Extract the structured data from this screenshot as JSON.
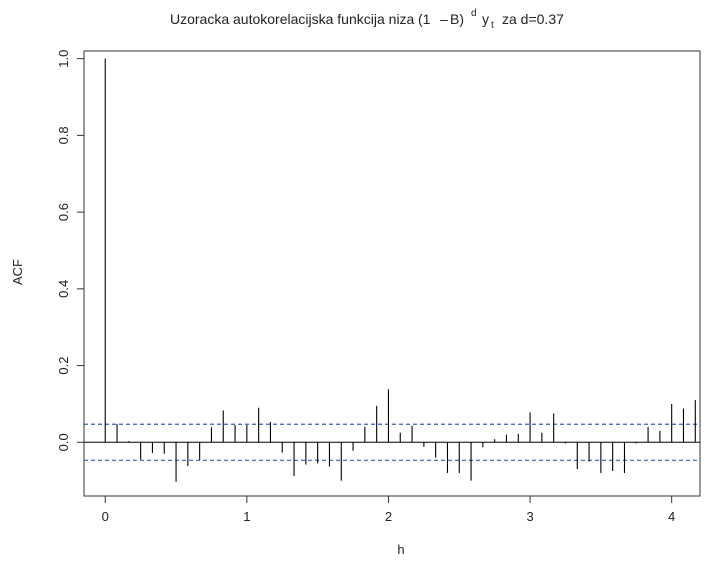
{
  "chart_data": {
    "type": "bar",
    "title": {
      "main": "Uzoracka autokorelacijska funkcija niza",
      "formula_open": "(1",
      "formula_minus": "–",
      "formula_close": "B)",
      "formula_exp": "d",
      "formula_y": "y",
      "formula_sub": "t",
      "formula_tail": "za d=0.37"
    },
    "xlabel": "h",
    "ylabel": "ACF",
    "xlim": [
      -0.15,
      4.2
    ],
    "ylim": [
      -0.14,
      1.02
    ],
    "x_ticks": [
      0,
      1,
      2,
      3,
      4
    ],
    "x_tick_labels": [
      "0",
      "1",
      "2",
      "3",
      "4"
    ],
    "y_ticks": [
      0.0,
      0.2,
      0.4,
      0.6,
      0.8,
      1.0
    ],
    "y_tick_labels": [
      "0.0",
      "0.2",
      "0.4",
      "0.6",
      "0.8",
      "1.0"
    ],
    "confidence_bound": 0.047,
    "colors": {
      "spike": "#000000",
      "bound": "#3b5fb5",
      "axis": "#333333"
    },
    "x": [
      0.0,
      0.0833,
      0.1667,
      0.25,
      0.3333,
      0.4167,
      0.5,
      0.5833,
      0.6667,
      0.75,
      0.8333,
      0.9167,
      1.0,
      1.0833,
      1.1667,
      1.25,
      1.3333,
      1.4167,
      1.5,
      1.5833,
      1.6667,
      1.75,
      1.8333,
      1.9167,
      2.0,
      2.0833,
      2.1667,
      2.25,
      2.3333,
      2.4167,
      2.5,
      2.5833,
      2.6667,
      2.75,
      2.8333,
      2.9167,
      3.0,
      3.0833,
      3.1667,
      3.25,
      3.3333,
      3.4167,
      3.5,
      3.5833,
      3.6667,
      3.75,
      3.8333,
      3.9167,
      4.0,
      4.0833,
      4.1667
    ],
    "values": [
      1.0,
      0.048,
      0.003,
      -0.045,
      -0.028,
      -0.03,
      -0.103,
      -0.062,
      -0.046,
      0.039,
      0.083,
      0.045,
      0.045,
      0.09,
      0.053,
      -0.027,
      -0.088,
      -0.058,
      -0.055,
      -0.063,
      -0.1,
      -0.022,
      0.04,
      0.095,
      0.138,
      0.025,
      0.043,
      -0.012,
      -0.04,
      -0.08,
      -0.08,
      -0.1,
      -0.013,
      0.008,
      0.02,
      0.022,
      0.078,
      0.025,
      0.075,
      -0.003,
      -0.07,
      -0.05,
      -0.08,
      -0.075,
      -0.08,
      -0.003,
      0.04,
      0.03,
      0.1,
      0.088,
      0.11
    ]
  }
}
